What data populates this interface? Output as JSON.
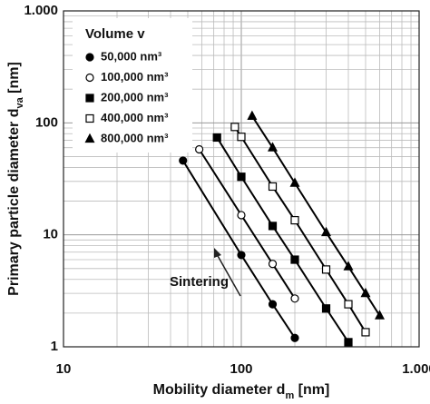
{
  "chart_data": {
    "type": "line",
    "x_label": [
      "Mobility diameter d",
      "m",
      " [nm]"
    ],
    "y_label": [
      "Primary particle diameter d",
      "va",
      " [nm]"
    ],
    "xscale": "log",
    "yscale": "log",
    "grid": true,
    "xlim": [
      10,
      1000
    ],
    "xticks": [
      10,
      100,
      {
        "value": 1000,
        "label": "1.000"
      }
    ],
    "ylim": [
      1,
      1000
    ],
    "yticks": [
      1,
      10,
      100,
      {
        "value": 1000,
        "label": "1.000"
      }
    ],
    "legend_title": "Volume v",
    "legend": "upper left",
    "annotation": "Sintering",
    "series": [
      {
        "name": "50,000 nm³",
        "color": "#000000",
        "marker": "circle-filled",
        "x": [
          47,
          100,
          150,
          200
        ],
        "values": [
          46,
          6.6,
          2.4,
          1.2
        ]
      },
      {
        "name": "100,000 nm³",
        "color": "#000000",
        "marker": "circle-open",
        "x": [
          58,
          100,
          150,
          200
        ],
        "values": [
          58,
          15,
          5.5,
          2.7
        ]
      },
      {
        "name": "200,000 nm³",
        "color": "#000000",
        "marker": "square-filled",
        "x": [
          73,
          100,
          150,
          200,
          300,
          400
        ],
        "values": [
          74,
          33,
          12,
          6,
          2.2,
          1.1
        ]
      },
      {
        "name": "400,000 nm³",
        "color": "#000000",
        "marker": "square-open",
        "x": [
          92,
          100,
          150,
          200,
          300,
          400,
          500
        ],
        "values": [
          92,
          75,
          27,
          13.5,
          4.9,
          2.4,
          1.35
        ]
      },
      {
        "name": "800,000 nm³",
        "color": "#000000",
        "marker": "triangle-filled",
        "x": [
          115,
          150,
          200,
          300,
          400,
          500,
          600
        ],
        "values": [
          115,
          60,
          29,
          10.5,
          5.2,
          3,
          1.9
        ]
      }
    ]
  }
}
